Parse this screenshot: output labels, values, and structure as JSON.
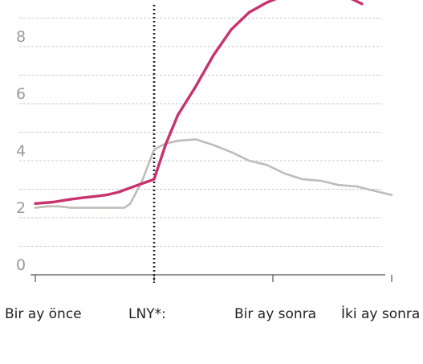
{
  "chart_data": {
    "type": "line",
    "title": "",
    "xlabel": "",
    "ylabel": "",
    "x_ticks": [
      {
        "label": "Bir ay önce",
        "x": -1
      },
      {
        "label": "LNY*:",
        "x": 0
      },
      {
        "label": "Bir ay sonra",
        "x": 1
      },
      {
        "label": "İki ay sonra",
        "x": 2
      }
    ],
    "y_ticks": [
      0,
      2,
      4,
      6,
      8
    ],
    "xlim": [
      -1.05,
      2.05
    ],
    "ylim": [
      -0.2,
      10
    ],
    "grid": true,
    "event_line": {
      "x": 0,
      "label": "LNY*:",
      "style": "dotted"
    },
    "series": [
      {
        "color": "#c8326e",
        "x": [
          -1.0,
          -0.85,
          -0.7,
          -0.6,
          -0.5,
          -0.4,
          -0.3,
          -0.2,
          -0.1,
          0.0,
          0.1,
          0.2,
          0.35,
          0.5,
          0.65,
          0.8,
          0.95,
          1.1,
          1.25,
          1.4,
          1.55,
          1.65,
          1.75
        ],
        "y": [
          2.5,
          2.55,
          2.65,
          2.7,
          2.75,
          2.8,
          2.9,
          3.05,
          3.2,
          3.35,
          4.6,
          5.6,
          6.6,
          7.7,
          8.6,
          9.2,
          9.55,
          9.8,
          9.95,
          10.0,
          9.85,
          9.7,
          9.5
        ]
      },
      {
        "color": "#c0bcb8",
        "x": [
          -1.0,
          -0.9,
          -0.8,
          -0.7,
          -0.6,
          -0.5,
          -0.4,
          -0.3,
          -0.25,
          -0.2,
          -0.1,
          0.0,
          0.1,
          0.2,
          0.35,
          0.5,
          0.65,
          0.8,
          0.95,
          1.1,
          1.25,
          1.4,
          1.55,
          1.7,
          1.85,
          2.0
        ],
        "y": [
          2.35,
          2.4,
          2.4,
          2.35,
          2.35,
          2.35,
          2.35,
          2.35,
          2.35,
          2.5,
          3.3,
          4.4,
          4.6,
          4.7,
          4.75,
          4.55,
          4.3,
          4.0,
          3.85,
          3.55,
          3.35,
          3.3,
          3.15,
          3.1,
          2.95,
          2.8
        ]
      }
    ]
  }
}
